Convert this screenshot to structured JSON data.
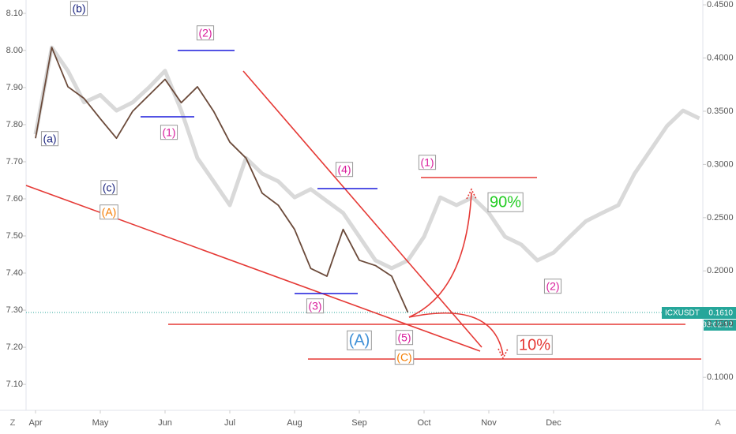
{
  "chart_data": {
    "type": "line",
    "categories": [
      "Apr",
      null,
      null,
      null,
      "May",
      null,
      null,
      null,
      "Jun",
      null,
      null,
      null,
      "Jul",
      null,
      null,
      null,
      "Aug",
      null,
      null,
      null,
      "Sep",
      null,
      null,
      null,
      "Oct",
      null,
      null,
      null,
      "Nov",
      null,
      null,
      null,
      "Dec",
      null,
      null,
      null,
      null,
      null,
      null,
      null,
      null,
      null
    ],
    "series": [
      {
        "color": "#d9d9d9",
        "values": [
          7.774,
          8.008,
          7.945,
          7.86,
          7.88,
          7.838,
          7.86,
          7.9,
          7.945,
          7.838,
          7.71,
          7.647,
          7.583,
          7.71,
          7.668,
          7.647,
          7.604,
          7.626,
          7.594,
          7.562,
          7.498,
          7.434,
          7.413,
          7.434,
          7.498,
          7.604,
          7.583,
          7.604,
          7.562,
          7.498,
          7.477,
          7.434,
          7.455,
          7.498,
          7.54,
          7.562,
          7.583,
          7.668,
          7.732,
          7.796,
          7.838,
          7.817
        ]
      },
      {
        "name": "ICXUSDT",
        "color": "#6b4a3a",
        "axis": "y2",
        "values": [
          0.3246,
          0.41,
          0.373,
          0.362,
          0.343,
          0.3246,
          0.35,
          0.365,
          0.38,
          0.358,
          0.373,
          0.35,
          0.321,
          0.306,
          0.273,
          0.2616,
          0.239,
          0.2023,
          0.195,
          0.239,
          0.21,
          0.205,
          0.195,
          0.161,
          null,
          null,
          null,
          null,
          null,
          null,
          null,
          null,
          null,
          null,
          null,
          null,
          null,
          null,
          null,
          null,
          null,
          null
        ]
      }
    ],
    "ylim": [
      7.03,
      8.136
    ],
    "yticks": [
      {
        "value": 7.1,
        "label": "7.10"
      },
      {
        "value": 7.2,
        "label": "7.20"
      },
      {
        "value": 7.3,
        "label": "7.30"
      },
      {
        "value": 7.4,
        "label": "7.40"
      },
      {
        "value": 7.5,
        "label": "7.50"
      },
      {
        "value": 7.6,
        "label": "7.60"
      },
      {
        "value": 7.7,
        "label": "7.70"
      },
      {
        "value": 7.8,
        "label": "7.80"
      },
      {
        "value": 7.9,
        "label": "7.90"
      },
      {
        "value": 8.0,
        "label": "8.00"
      },
      {
        "value": 8.1,
        "label": "8.10"
      }
    ],
    "y2lim": [
      0.069,
      0.4545
    ],
    "y2ticks": [
      {
        "value": 0.1,
        "label": "0.1000"
      },
      {
        "value": 0.15,
        "label": "0.1500"
      },
      {
        "value": 0.2,
        "label": "0.2000"
      },
      {
        "value": 0.25,
        "label": "0.2500"
      },
      {
        "value": 0.3,
        "label": "0.3000"
      },
      {
        "value": 0.35,
        "label": "0.3500"
      },
      {
        "value": 0.4,
        "label": "0.4000"
      },
      {
        "value": 0.45,
        "label": "0.4500"
      }
    ],
    "last_price_label": "0.1610",
    "countdown": "03:02:12",
    "annotations": [
      "(b)",
      "(a)",
      "(c)",
      "(A)",
      "(2)",
      "(1)",
      "(4)",
      "(3)",
      "(1)",
      "(5)",
      "(C)",
      "(2)",
      "(A)",
      "90%",
      "10%"
    ],
    "corner_left": "Z",
    "corner_right": "A"
  }
}
